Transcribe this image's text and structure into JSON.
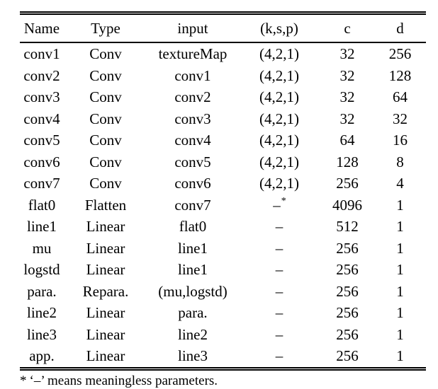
{
  "page": {
    "background": "#ffffff",
    "text_color": "#000000",
    "rule_color": "#000000"
  },
  "table": {
    "columns": [
      "Name",
      "Type",
      "input",
      "(k,s,p)",
      "c",
      "d"
    ],
    "rows": [
      [
        "conv1",
        "Conv",
        "textureMap",
        "(4,2,1)",
        "32",
        "256"
      ],
      [
        "conv2",
        "Conv",
        "conv1",
        "(4,2,1)",
        "32",
        "128"
      ],
      [
        "conv3",
        "Conv",
        "conv2",
        "(4,2,1)",
        "32",
        "64"
      ],
      [
        "conv4",
        "Conv",
        "conv3",
        "(4,2,1)",
        "32",
        "32"
      ],
      [
        "conv5",
        "Conv",
        "conv4",
        "(4,2,1)",
        "64",
        "16"
      ],
      [
        "conv6",
        "Conv",
        "conv5",
        "(4,2,1)",
        "128",
        "8"
      ],
      [
        "conv7",
        "Conv",
        "conv6",
        "(4,2,1)",
        "256",
        "4"
      ],
      [
        "flat0",
        "Flatten",
        "conv7",
        "–*",
        "4096",
        "1"
      ],
      [
        "line1",
        "Linear",
        "flat0",
        "–",
        "512",
        "1"
      ],
      [
        "mu",
        "Linear",
        "line1",
        "–",
        "256",
        "1"
      ],
      [
        "logstd",
        "Linear",
        "line1",
        "–",
        "256",
        "1"
      ],
      [
        "para.",
        "Repara.",
        "(mu,logstd)",
        "–",
        "256",
        "1"
      ],
      [
        "line2",
        "Linear",
        "para.",
        "–",
        "256",
        "1"
      ],
      [
        "line3",
        "Linear",
        "line2",
        "–",
        "256",
        "1"
      ],
      [
        "app.",
        "Linear",
        "line3",
        "–",
        "256",
        "1"
      ]
    ],
    "footnote": {
      "marker": "*",
      "text": "‘–’ means meaningless parameters."
    }
  }
}
